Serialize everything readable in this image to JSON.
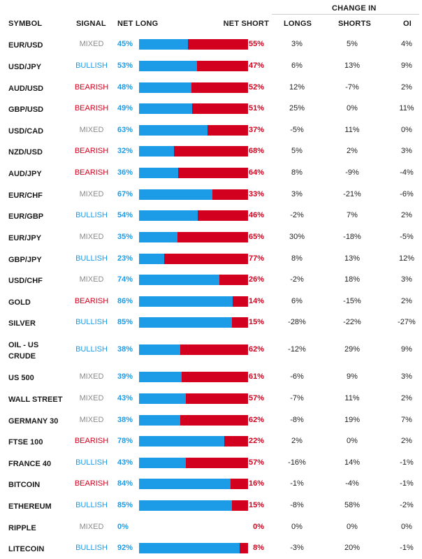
{
  "colors": {
    "long": "#1c9be6",
    "short": "#d2001e",
    "mixed": "#8a8a8a",
    "bullish": "#1c9be6",
    "bearish": "#d2001e"
  },
  "headers": {
    "symbol": "SYMBOL",
    "signal": "SIGNAL",
    "net_long": "NET LONG",
    "net_short": "NET SHORT",
    "change_in": "CHANGE IN",
    "longs": "LONGS",
    "shorts": "SHORTS",
    "oi": "OI"
  },
  "rows": [
    {
      "symbol": "EUR/USD",
      "signal": "MIXED",
      "net_long": "45%",
      "net_short": "55%",
      "long_pct": 45,
      "longs": "3%",
      "shorts": "5%",
      "oi": "4%"
    },
    {
      "symbol": "USD/JPY",
      "signal": "BULLISH",
      "net_long": "53%",
      "net_short": "47%",
      "long_pct": 53,
      "longs": "6%",
      "shorts": "13%",
      "oi": "9%"
    },
    {
      "symbol": "AUD/USD",
      "signal": "BEARISH",
      "net_long": "48%",
      "net_short": "52%",
      "long_pct": 48,
      "longs": "12%",
      "shorts": "-7%",
      "oi": "2%"
    },
    {
      "symbol": "GBP/USD",
      "signal": "BEARISH",
      "net_long": "49%",
      "net_short": "51%",
      "long_pct": 49,
      "longs": "25%",
      "shorts": "0%",
      "oi": "11%"
    },
    {
      "symbol": "USD/CAD",
      "signal": "MIXED",
      "net_long": "63%",
      "net_short": "37%",
      "long_pct": 63,
      "longs": "-5%",
      "shorts": "11%",
      "oi": "0%"
    },
    {
      "symbol": "NZD/USD",
      "signal": "BEARISH",
      "net_long": "32%",
      "net_short": "68%",
      "long_pct": 32,
      "longs": "5%",
      "shorts": "2%",
      "oi": "3%"
    },
    {
      "symbol": "AUD/JPY",
      "signal": "BEARISH",
      "net_long": "36%",
      "net_short": "64%",
      "long_pct": 36,
      "longs": "8%",
      "shorts": "-9%",
      "oi": "-4%"
    },
    {
      "symbol": "EUR/CHF",
      "signal": "MIXED",
      "net_long": "67%",
      "net_short": "33%",
      "long_pct": 67,
      "longs": "3%",
      "shorts": "-21%",
      "oi": "-6%"
    },
    {
      "symbol": "EUR/GBP",
      "signal": "BULLISH",
      "net_long": "54%",
      "net_short": "46%",
      "long_pct": 54,
      "longs": "-2%",
      "shorts": "7%",
      "oi": "2%"
    },
    {
      "symbol": "EUR/JPY",
      "signal": "MIXED",
      "net_long": "35%",
      "net_short": "65%",
      "long_pct": 35,
      "longs": "30%",
      "shorts": "-18%",
      "oi": "-5%"
    },
    {
      "symbol": "GBP/JPY",
      "signal": "BULLISH",
      "net_long": "23%",
      "net_short": "77%",
      "long_pct": 23,
      "longs": "8%",
      "shorts": "13%",
      "oi": "12%"
    },
    {
      "symbol": "USD/CHF",
      "signal": "MIXED",
      "net_long": "74%",
      "net_short": "26%",
      "long_pct": 74,
      "longs": "-2%",
      "shorts": "18%",
      "oi": "3%"
    },
    {
      "symbol": "GOLD",
      "signal": "BEARISH",
      "net_long": "86%",
      "net_short": "14%",
      "long_pct": 86,
      "longs": "6%",
      "shorts": "-15%",
      "oi": "2%"
    },
    {
      "symbol": "SILVER",
      "signal": "BULLISH",
      "net_long": "85%",
      "net_short": "15%",
      "long_pct": 85,
      "longs": "-28%",
      "shorts": "-22%",
      "oi": "-27%"
    },
    {
      "symbol": "OIL - US CRUDE",
      "symbol_line1": "OIL - US",
      "symbol_line2": "CRUDE",
      "signal": "BULLISH",
      "net_long": "38%",
      "net_short": "62%",
      "long_pct": 38,
      "longs": "-12%",
      "shorts": "29%",
      "oi": "9%"
    },
    {
      "symbol": "US 500",
      "signal": "MIXED",
      "net_long": "39%",
      "net_short": "61%",
      "long_pct": 39,
      "longs": "-6%",
      "shorts": "9%",
      "oi": "3%"
    },
    {
      "symbol": "WALL STREET",
      "signal": "MIXED",
      "net_long": "43%",
      "net_short": "57%",
      "long_pct": 43,
      "longs": "-7%",
      "shorts": "11%",
      "oi": "2%"
    },
    {
      "symbol": "GERMANY 30",
      "signal": "MIXED",
      "net_long": "38%",
      "net_short": "62%",
      "long_pct": 38,
      "longs": "-8%",
      "shorts": "19%",
      "oi": "7%"
    },
    {
      "symbol": "FTSE 100",
      "signal": "BEARISH",
      "net_long": "78%",
      "net_short": "22%",
      "long_pct": 78,
      "longs": "2%",
      "shorts": "0%",
      "oi": "2%"
    },
    {
      "symbol": "FRANCE 40",
      "signal": "BULLISH",
      "net_long": "43%",
      "net_short": "57%",
      "long_pct": 43,
      "longs": "-16%",
      "shorts": "14%",
      "oi": "-1%"
    },
    {
      "symbol": "BITCOIN",
      "signal": "BEARISH",
      "net_long": "84%",
      "net_short": "16%",
      "long_pct": 84,
      "longs": "-1%",
      "shorts": "-4%",
      "oi": "-1%"
    },
    {
      "symbol": "ETHEREUM",
      "signal": "BULLISH",
      "net_long": "85%",
      "net_short": "15%",
      "long_pct": 85,
      "longs": "-8%",
      "shorts": "58%",
      "oi": "-2%"
    },
    {
      "symbol": "RIPPLE",
      "signal": "MIXED",
      "net_long": "0%",
      "net_short": "0%",
      "long_pct": 0,
      "no_bar": true,
      "longs": "0%",
      "shorts": "0%",
      "oi": "0%"
    },
    {
      "symbol": "LITECOIN",
      "signal": "BULLISH",
      "net_long": "92%",
      "net_short": "8%",
      "long_pct": 92,
      "longs": "-3%",
      "shorts": "20%",
      "oi": "-1%"
    }
  ]
}
